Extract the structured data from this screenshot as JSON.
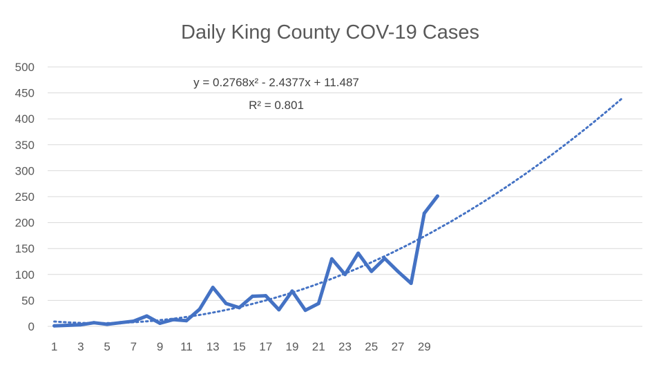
{
  "chart_data": {
    "type": "line",
    "title": "Daily King County COV-19 Cases",
    "xlabel": "",
    "ylabel": "",
    "ylim": [
      0,
      500
    ],
    "y_ticks": [
      0,
      50,
      100,
      150,
      200,
      250,
      300,
      350,
      400,
      450,
      500
    ],
    "x_tick_labels": [
      "1",
      "3",
      "5",
      "7",
      "9",
      "11",
      "13",
      "15",
      "17",
      "19",
      "21",
      "23",
      "25",
      "27",
      "29"
    ],
    "grid": true,
    "legend": "none",
    "colors": {
      "series": "#4472c4",
      "grid": "#d9d9d9",
      "text": "#595959"
    },
    "x": [
      1,
      2,
      3,
      4,
      5,
      6,
      7,
      8,
      9,
      10,
      11,
      12,
      13,
      14,
      15,
      16,
      17,
      18,
      19,
      20,
      21,
      22,
      23,
      24,
      25,
      26,
      27,
      28,
      29,
      30
    ],
    "series": [
      {
        "values": [
          1,
          2,
          3,
          7,
          4,
          7,
          10,
          20,
          6,
          13,
          11,
          33,
          75,
          44,
          36,
          58,
          59,
          32,
          68,
          31,
          44,
          130,
          100,
          141,
          106,
          131,
          106,
          83,
          218,
          251
        ]
      }
    ],
    "trendline": {
      "type": "polynomial",
      "order": 2,
      "coefficients": [
        0.2768,
        -2.4377,
        11.487
      ],
      "x_range": [
        1,
        44
      ],
      "equation_label": "y = 0.2768x² - 2.4377x + 11.487",
      "r2_label": "R² = 0.801"
    }
  }
}
